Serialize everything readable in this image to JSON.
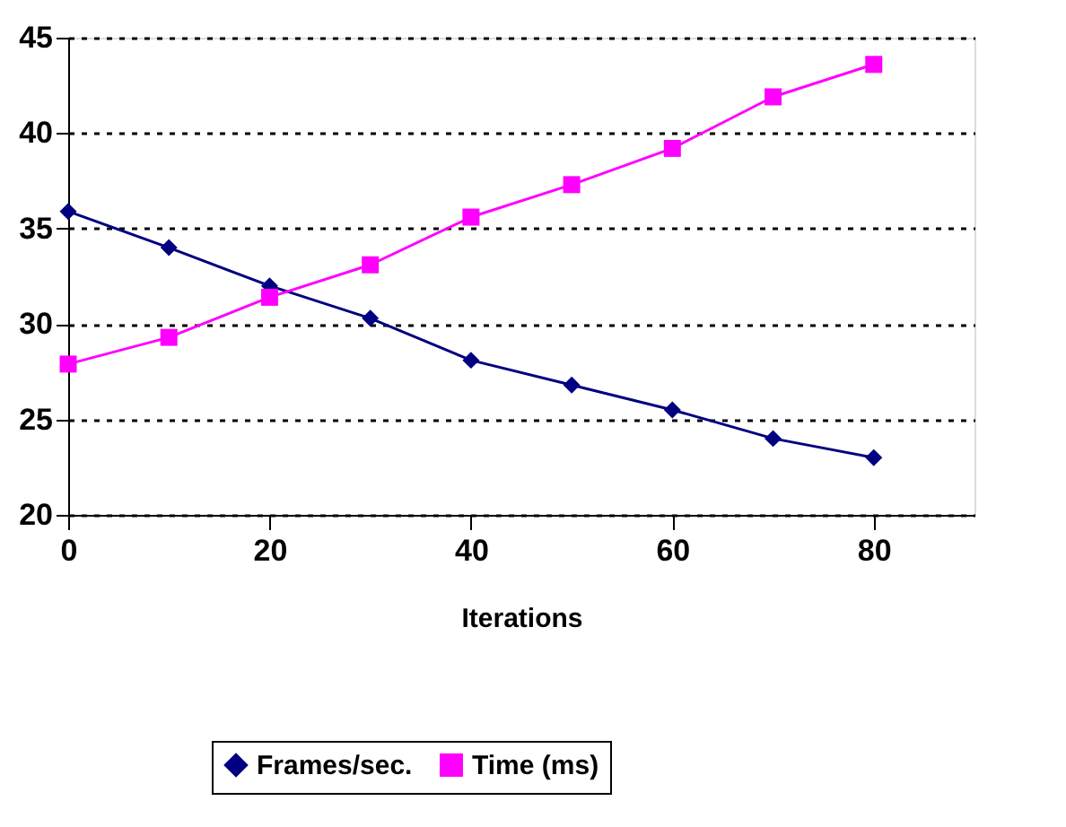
{
  "chart_data": {
    "type": "line",
    "xlabel": "Iterations",
    "x": [
      0,
      10,
      20,
      30,
      40,
      50,
      60,
      70,
      80
    ],
    "series": [
      {
        "name": "Frames/sec.",
        "color": "#000080",
        "marker": "diamond",
        "values": [
          35.9,
          34.0,
          32.0,
          30.3,
          28.1,
          26.8,
          25.5,
          24.0,
          23.0
        ]
      },
      {
        "name": "Time (ms)",
        "color": "#ff00ff",
        "marker": "square",
        "values": [
          27.9,
          29.3,
          31.4,
          33.1,
          35.6,
          37.3,
          39.2,
          41.9,
          43.6
        ]
      }
    ],
    "xlim": [
      0,
      90
    ],
    "xticks": [
      0,
      20,
      40,
      60,
      80
    ],
    "ylim": [
      20,
      45
    ],
    "yticks": [
      20,
      25,
      30,
      35,
      40,
      45
    ],
    "grid": "y",
    "legend": "bottom",
    "line_style": "solid"
  }
}
